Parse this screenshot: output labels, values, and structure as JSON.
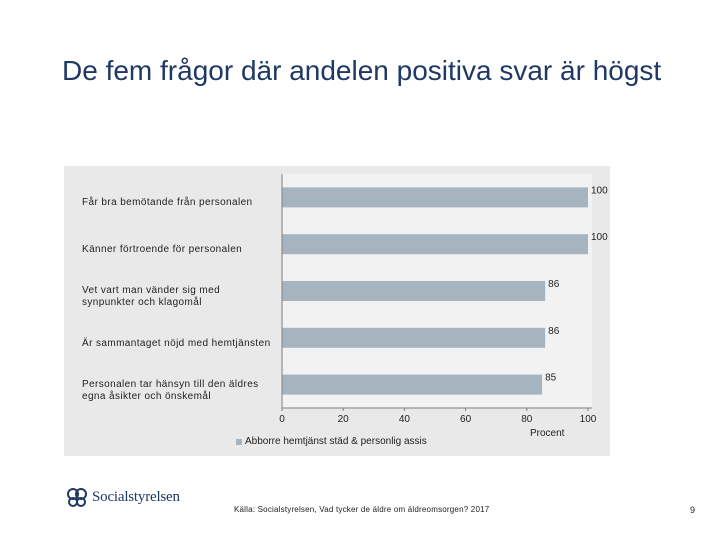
{
  "slide": {
    "title": "De fem frågor där andelen positiva svar är högst",
    "source": "Källa: Socialstyrelsen, Vad tycker de äldre om äldreomsorgen? 2017",
    "page_number": "9",
    "logo_text": "Socialstyrelsen"
  },
  "chart_data": {
    "type": "bar",
    "orientation": "horizontal",
    "categories": [
      "Får bra bemötande från personalen",
      "Känner förtroende för personalen",
      "Vet vart man vänder sig med synpunkter och klagomål",
      "Är sammantaget nöjd med hemtjänsten",
      "Personalen tar hänsyn till den äldres egna åsikter och önskemål"
    ],
    "series": [
      {
        "name": "Abborre hemtjänst städ & personlig assis",
        "values": [
          100,
          100,
          86,
          86,
          85
        ],
        "data_labels": [
          "100",
          "100",
          "86",
          "86",
          "85"
        ]
      }
    ],
    "xlim": [
      0,
      100
    ],
    "xticks": [
      "0",
      "20",
      "40",
      "60",
      "80",
      "100"
    ],
    "xlabel": "Procent",
    "legend": "bottom-left",
    "grid": false,
    "colors": {
      "bar": "#a5b4bf",
      "panel": "#e9e9e9",
      "axis": "#7f7f7f",
      "title": "#1f3864"
    }
  }
}
